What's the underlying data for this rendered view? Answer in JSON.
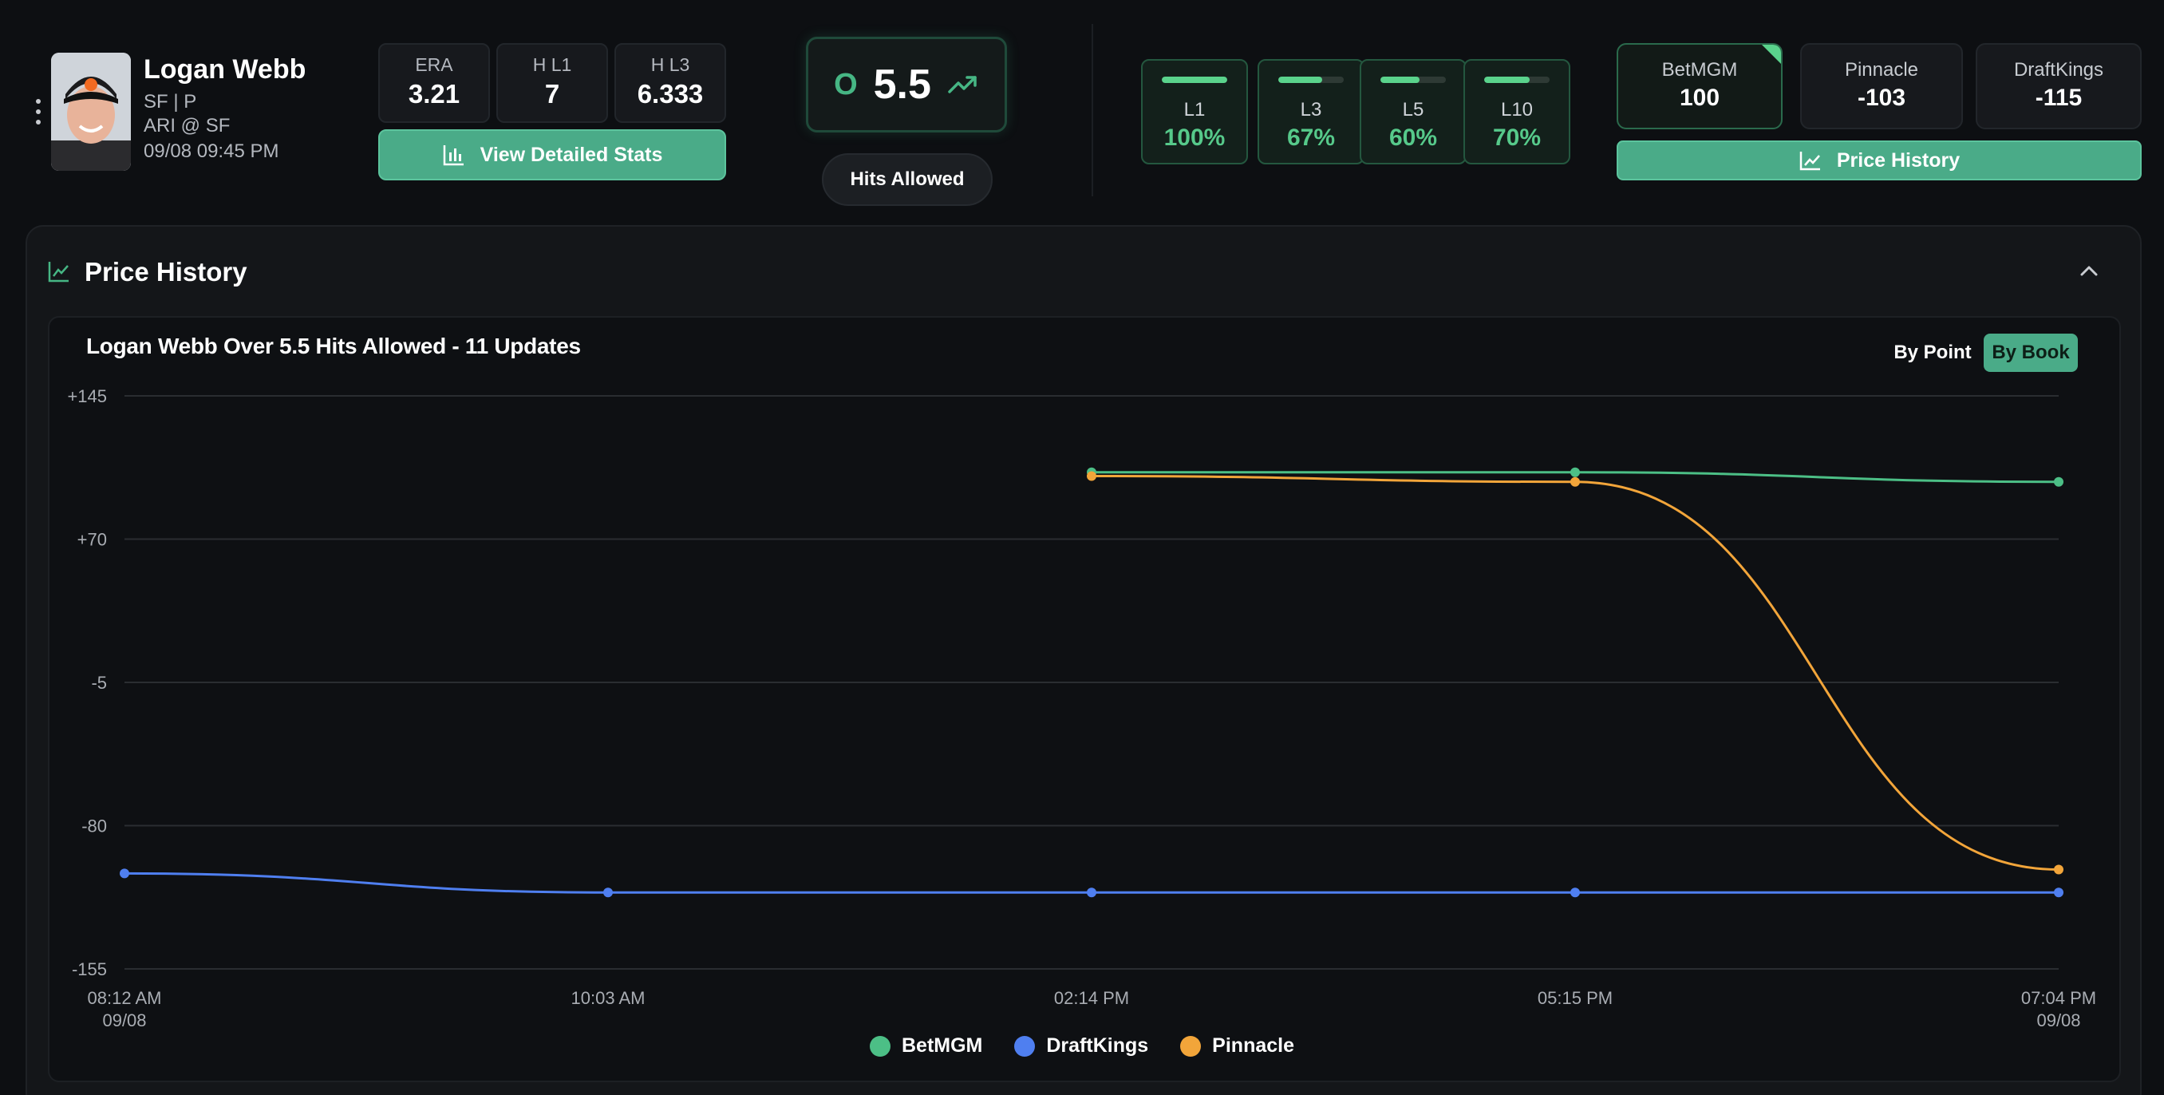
{
  "player": {
    "name": "Logan Webb",
    "team_pos": "SF | P",
    "matchup": "ARI @ SF",
    "datetime": "09/08 09:45 PM"
  },
  "stats": [
    {
      "label": "ERA",
      "value": "3.21"
    },
    {
      "label": "H L1",
      "value": "7"
    },
    {
      "label": "H L3",
      "value": "6.333"
    }
  ],
  "view_stats_label": "View Detailed Stats",
  "line": {
    "side": "O",
    "value": "5.5",
    "market": "Hits Allowed"
  },
  "hit_rates": [
    {
      "label": "L1",
      "pct": "100%",
      "fill": 1.0
    },
    {
      "label": "L3",
      "pct": "67%",
      "fill": 0.67
    },
    {
      "label": "L5",
      "pct": "60%",
      "fill": 0.6
    },
    {
      "label": "L10",
      "pct": "70%",
      "fill": 0.7
    }
  ],
  "books": [
    {
      "name": "BetMGM",
      "odds": "100",
      "active": true
    },
    {
      "name": "Pinnacle",
      "odds": "-103",
      "active": false
    },
    {
      "name": "DraftKings",
      "odds": "-115",
      "active": false
    }
  ],
  "price_history_btn": "Price History",
  "panel": {
    "title": "Price History",
    "chart_title": "Logan Webb Over 5.5 Hits Allowed - 11 Updates",
    "toggle": {
      "by_point": "By Point",
      "by_book": "By Book"
    }
  },
  "colors": {
    "betmgm": "#4cbf86",
    "draftkings": "#4f7ff0",
    "pinnacle": "#f2a53a",
    "accent": "#4aab88"
  },
  "chart_data": {
    "type": "line",
    "title": "Logan Webb Over 5.5 Hits Allowed - 11 Updates",
    "x": [
      "08:12 AM 09/08",
      "10:03 AM",
      "02:14 PM",
      "05:15 PM",
      "07:04 PM 09/08"
    ],
    "x_ticks": [
      {
        "time": "08:12 AM",
        "date": "09/08"
      },
      {
        "time": "10:03 AM",
        "date": ""
      },
      {
        "time": "02:14 PM",
        "date": ""
      },
      {
        "time": "05:15 PM",
        "date": ""
      },
      {
        "time": "07:04 PM",
        "date": "09/08"
      }
    ],
    "y_ticks": [
      "+145",
      "+70",
      "-5",
      "-80",
      "-155"
    ],
    "ylim": [
      -155,
      145
    ],
    "grid": true,
    "legend_position": "bottom",
    "series": [
      {
        "name": "BetMGM",
        "color": "#4cbf86",
        "values": [
          null,
          null,
          105,
          105,
          100
        ]
      },
      {
        "name": "DraftKings",
        "color": "#4f7ff0",
        "values": [
          -105,
          -115,
          -115,
          -115,
          -115
        ]
      },
      {
        "name": "Pinnacle",
        "color": "#f2a53a",
        "values": [
          null,
          null,
          103,
          100,
          -103
        ]
      }
    ]
  }
}
